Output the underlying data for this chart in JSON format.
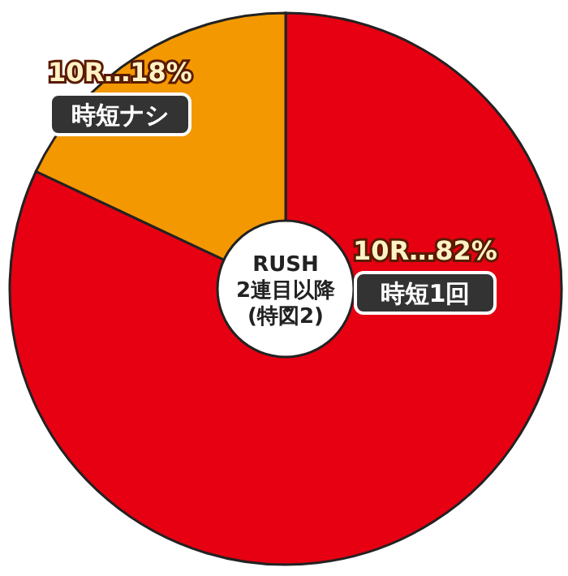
{
  "chart_data": {
    "type": "donut",
    "title": "RUSH\n2連目以降\n(特図2)",
    "categories": [
      "時短1回",
      "時短ナシ"
    ],
    "values": [
      82,
      18
    ],
    "colors": [
      "#e60012",
      "#f39800"
    ],
    "value_labels": [
      "10R…82%",
      "10R…18%"
    ]
  }
}
